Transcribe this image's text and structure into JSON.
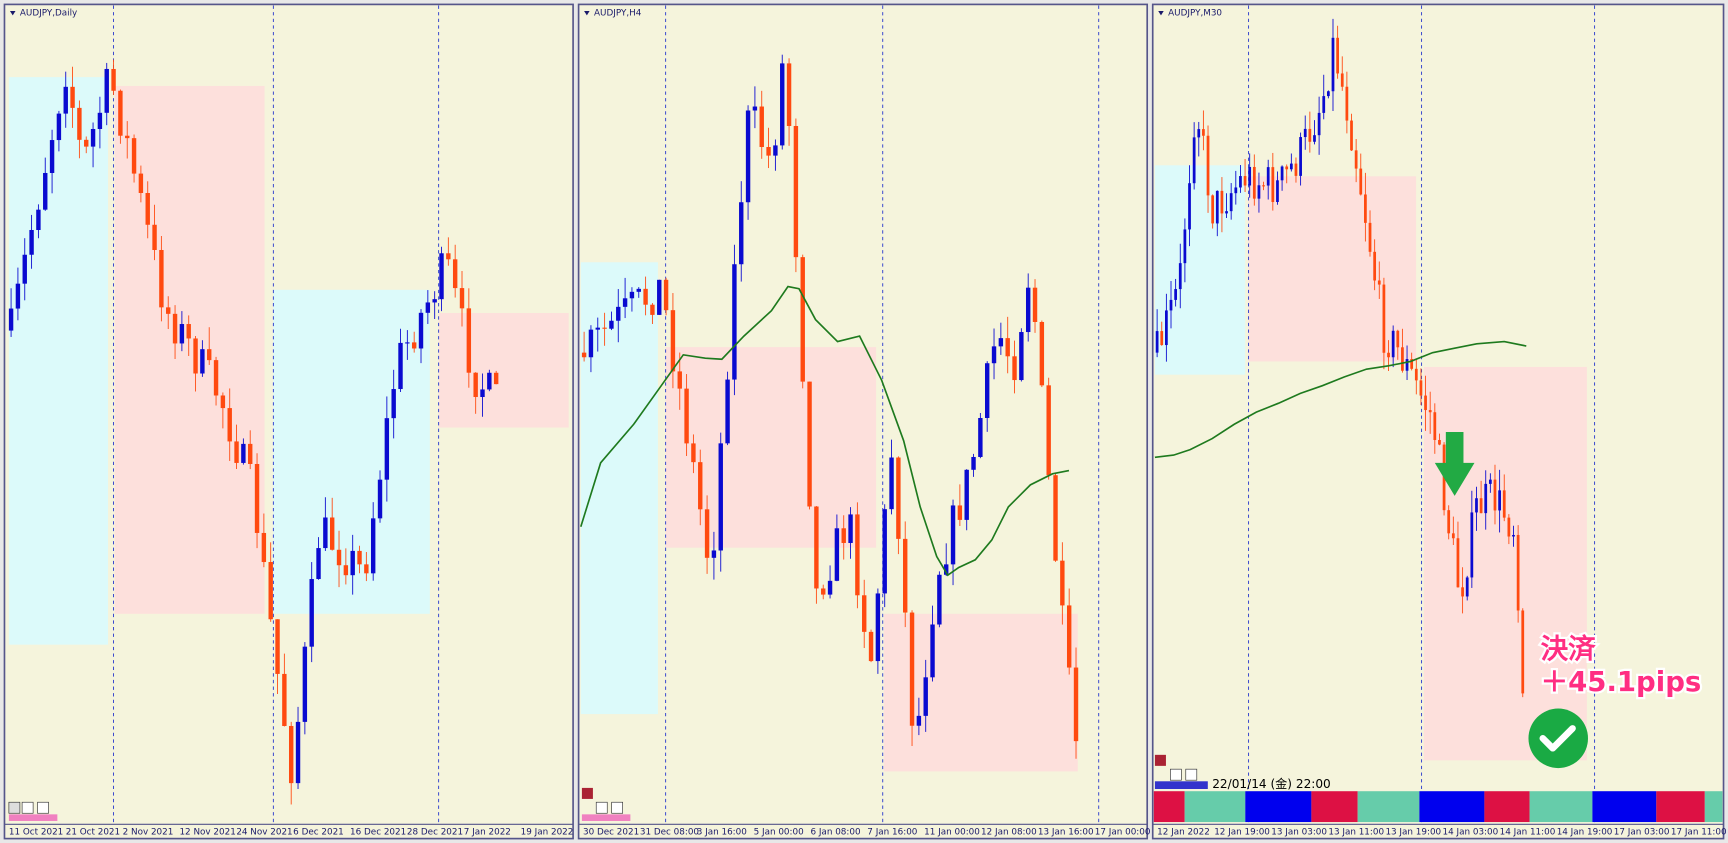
{
  "panels": [
    {
      "title": "AUDJPY,Daily",
      "x_labels": [
        "11 Oct 2021",
        "21 Oct 2021",
        "2 Nov 2021",
        "12 Nov 2021",
        "24 Nov 2021",
        "6 Dec 2021",
        "16 Dec 2021",
        "28 Dec 2021",
        "7 Jan 2022",
        "19 Jan 2022"
      ]
    },
    {
      "title": "AUDJPY,H4",
      "x_labels": [
        "30 Dec 2021",
        "31 Dec 08:00",
        "3 Jan 16:00",
        "5 Jan 00:00",
        "6 Jan 08:00",
        "7 Jan 16:00",
        "11 Jan 00:00",
        "12 Jan 08:00",
        "13 Jan 16:00",
        "17 Jan 00:00"
      ]
    },
    {
      "title": "AUDJPY,M30",
      "x_labels": [
        "12 Jan 2022",
        "12 Jan 19:00",
        "13 Jan 03:00",
        "13 Jan 11:00",
        "13 Jan 19:00",
        "14 Jan 03:00",
        "14 Jan 11:00",
        "14 Jan 19:00",
        "17 Jan 03:00",
        "17 Jan 11:00"
      ]
    }
  ],
  "timestamp": "22/01/14 (金) 22:00",
  "annotation": {
    "line1": "決済",
    "line2": "＋45.1pips"
  }
}
